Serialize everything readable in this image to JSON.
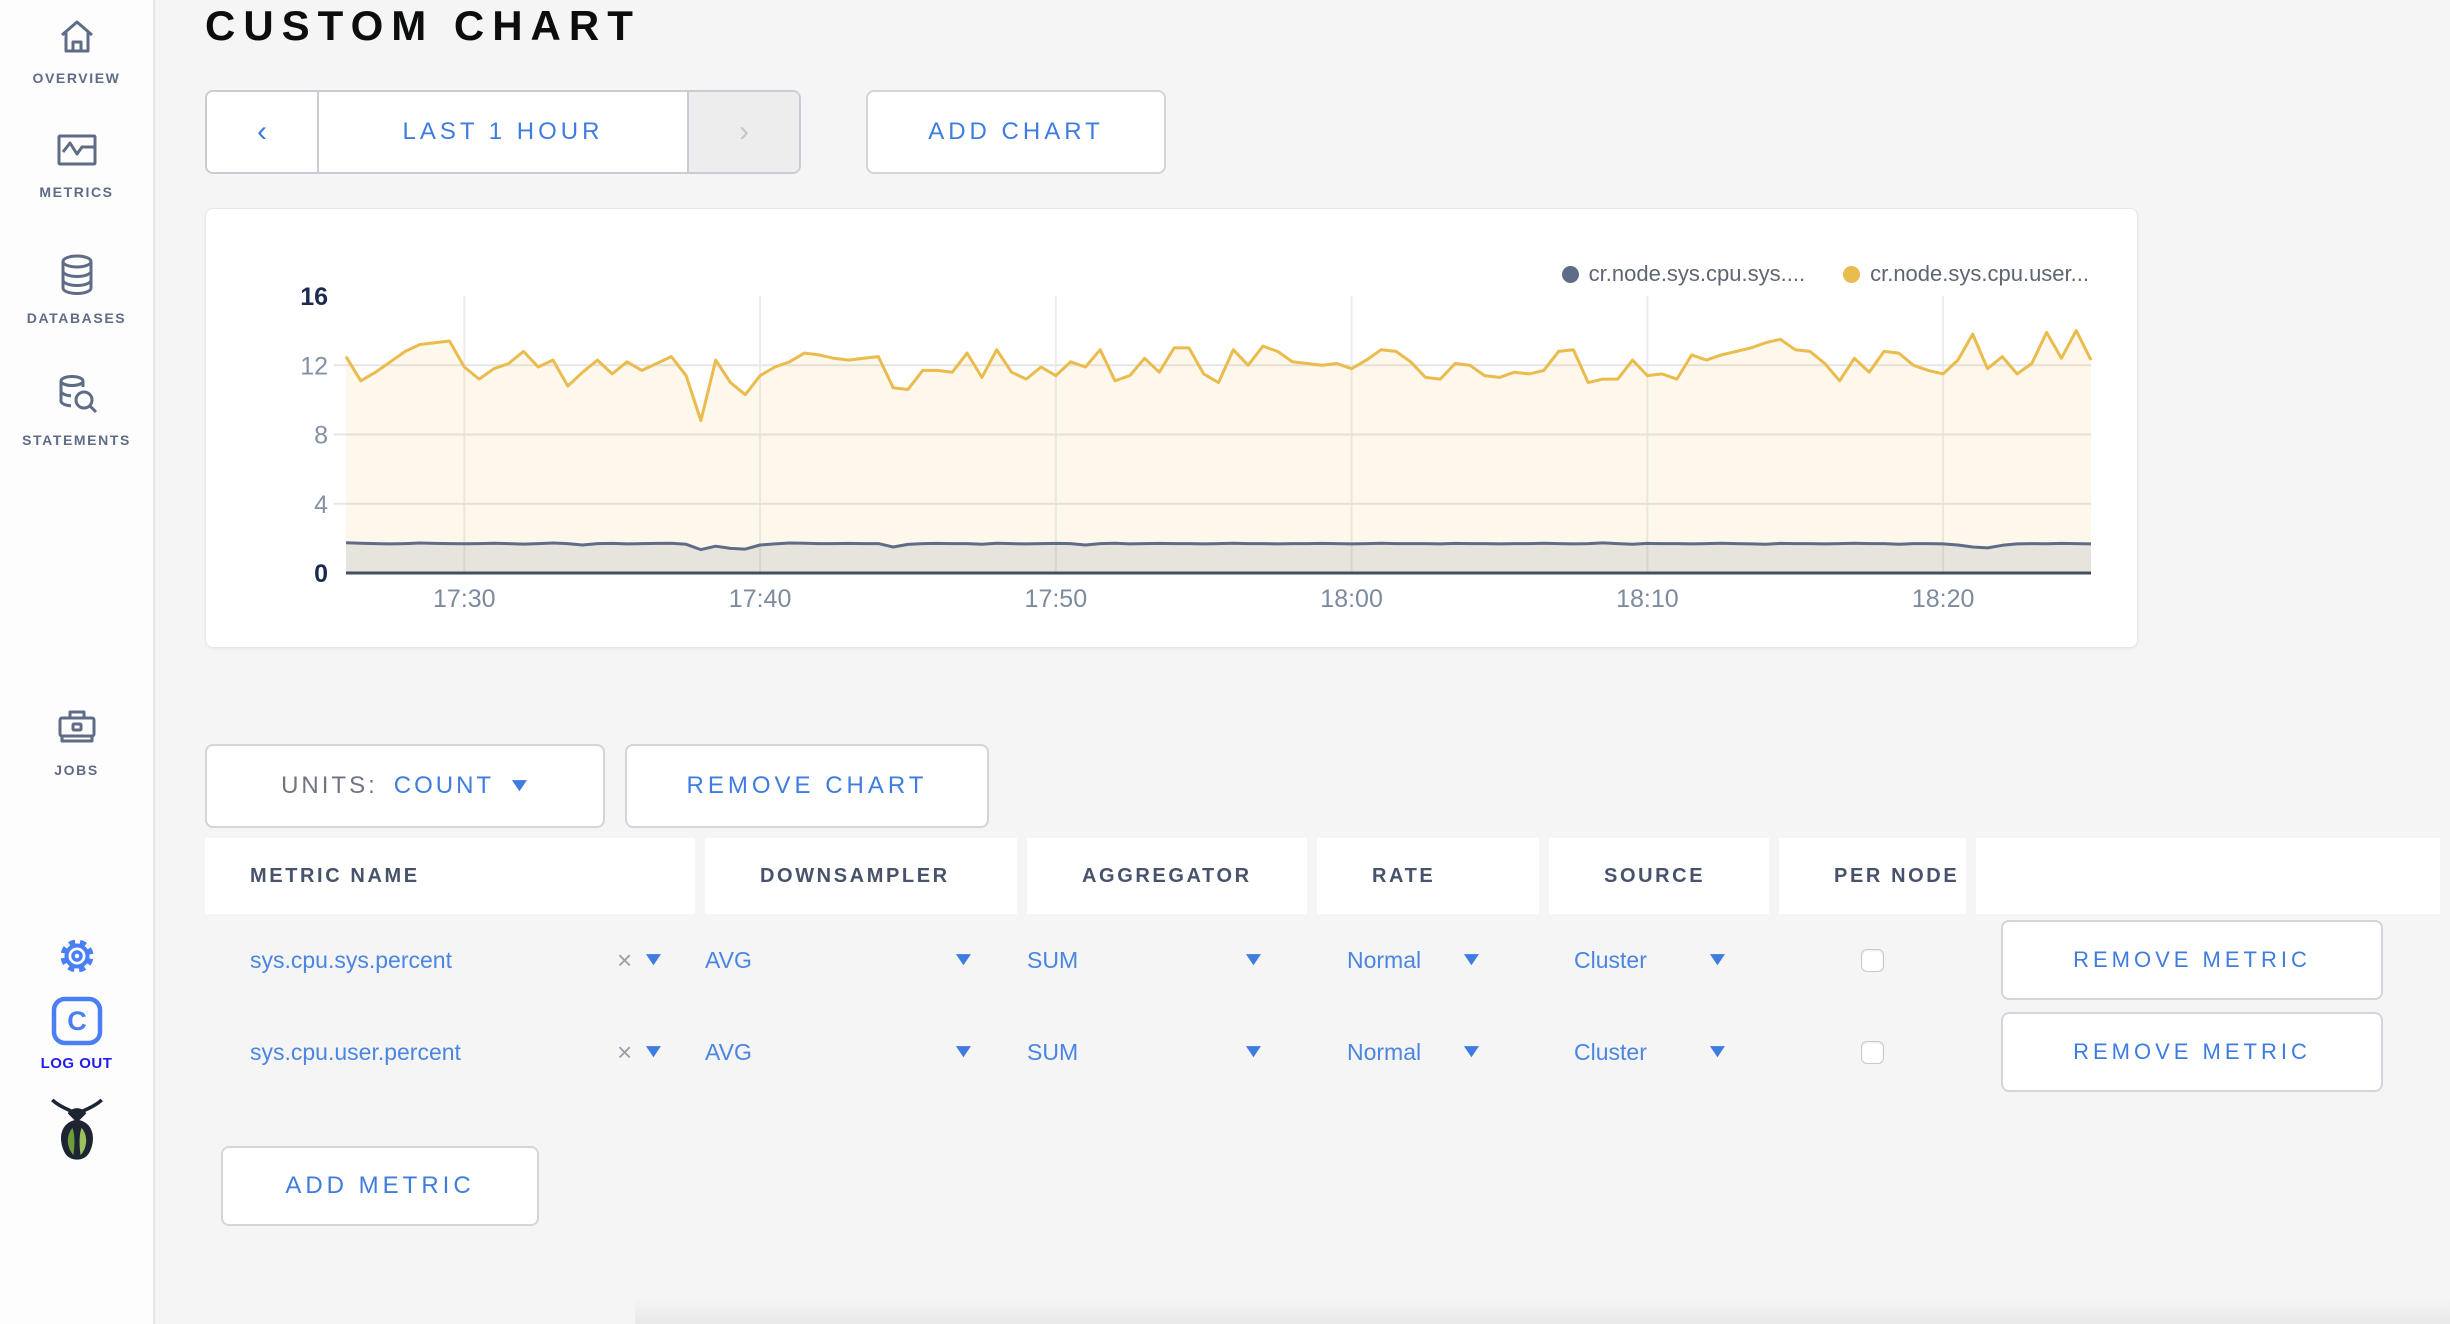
{
  "colors": {
    "accent_blue": "#3f7ce0",
    "logout_blue": "#211cf0",
    "sidebar_icon_gray": "#5f6c87",
    "settings_icon_blue": "#4a7ef5",
    "series_sys": "#5f6c87",
    "series_user": "#eabb4d"
  },
  "header": {
    "title": "CUSTOM CHART"
  },
  "sidebar": {
    "items": [
      {
        "label": "OVERVIEW"
      },
      {
        "label": "METRICS"
      },
      {
        "label": "DATABASES"
      },
      {
        "label": "STATEMENTS"
      },
      {
        "label": "JOBS"
      }
    ],
    "logout": {
      "icon_letter": "C",
      "label": "LOG OUT"
    }
  },
  "controls": {
    "prev_arrow": "‹",
    "time_range_label": "LAST 1 HOUR",
    "next_arrow": "›",
    "add_chart_label": "ADD CHART"
  },
  "units": {
    "label": "UNITS:",
    "value": "COUNT"
  },
  "remove_chart_label": "REMOVE CHART",
  "chart_data": {
    "type": "line",
    "title": "",
    "grid": true,
    "legend_position": "top-right",
    "x_axis": {
      "start_time": "17:26",
      "step_minutes": 0.5,
      "tick_minutes": [
        4,
        14,
        24,
        34,
        44,
        54
      ],
      "tick_labels": [
        "17:30",
        "17:40",
        "17:50",
        "18:00",
        "18:10",
        "18:20"
      ]
    },
    "y_axis": {
      "range": [
        0,
        16
      ],
      "ticks": [
        0,
        4,
        8,
        12,
        16
      ]
    },
    "series": [
      {
        "name": "cr.node.sys.cpu.sys....",
        "color": "#5f6c87",
        "fill": "rgba(95,108,135,0.14)",
        "values": [
          1.75,
          1.72,
          1.7,
          1.68,
          1.7,
          1.73,
          1.71,
          1.7,
          1.69,
          1.7,
          1.72,
          1.7,
          1.67,
          1.7,
          1.73,
          1.7,
          1.62,
          1.7,
          1.71,
          1.68,
          1.7,
          1.71,
          1.72,
          1.66,
          1.35,
          1.55,
          1.42,
          1.38,
          1.62,
          1.68,
          1.73,
          1.72,
          1.7,
          1.7,
          1.71,
          1.7,
          1.7,
          1.5,
          1.65,
          1.7,
          1.71,
          1.7,
          1.7,
          1.66,
          1.72,
          1.7,
          1.68,
          1.7,
          1.71,
          1.7,
          1.62,
          1.7,
          1.72,
          1.68,
          1.7,
          1.71,
          1.7,
          1.7,
          1.68,
          1.7,
          1.72,
          1.7,
          1.7,
          1.68,
          1.7,
          1.7,
          1.71,
          1.7,
          1.68,
          1.7,
          1.72,
          1.7,
          1.7,
          1.7,
          1.68,
          1.71,
          1.7,
          1.7,
          1.68,
          1.7,
          1.7,
          1.72,
          1.7,
          1.68,
          1.7,
          1.74,
          1.7,
          1.66,
          1.71,
          1.7,
          1.7,
          1.68,
          1.7,
          1.72,
          1.7,
          1.68,
          1.66,
          1.71,
          1.7,
          1.7,
          1.68,
          1.7,
          1.72,
          1.7,
          1.7,
          1.66,
          1.7,
          1.7,
          1.68,
          1.62,
          1.5,
          1.45,
          1.6,
          1.68,
          1.7,
          1.69,
          1.71,
          1.7,
          1.68
        ]
      },
      {
        "name": "cr.node.sys.cpu.user...",
        "color": "#eabb4d",
        "fill": "rgba(234,187,77,0.11)",
        "values": [
          12.5,
          11.1,
          11.6,
          12.2,
          12.8,
          13.2,
          13.3,
          13.4,
          11.9,
          11.2,
          11.8,
          12.1,
          12.8,
          11.9,
          12.3,
          10.8,
          11.6,
          12.3,
          11.5,
          12.2,
          11.7,
          12.1,
          12.5,
          11.4,
          8.8,
          12.3,
          11.0,
          10.3,
          11.4,
          11.9,
          12.2,
          12.7,
          12.6,
          12.4,
          12.3,
          12.4,
          12.5,
          10.7,
          10.6,
          11.7,
          11.7,
          11.6,
          12.7,
          11.3,
          12.9,
          11.6,
          11.2,
          11.9,
          11.4,
          12.2,
          11.9,
          12.9,
          11.1,
          11.4,
          12.4,
          11.6,
          13.0,
          13.0,
          11.5,
          11.0,
          12.9,
          12.0,
          13.1,
          12.8,
          12.2,
          12.1,
          12.0,
          12.1,
          11.8,
          12.3,
          12.9,
          12.8,
          12.2,
          11.3,
          11.2,
          12.1,
          12.0,
          11.4,
          11.3,
          11.6,
          11.5,
          11.7,
          12.8,
          12.9,
          11.0,
          11.2,
          11.2,
          12.3,
          11.4,
          11.5,
          11.2,
          12.6,
          12.3,
          12.6,
          12.8,
          13.0,
          13.3,
          13.5,
          12.9,
          12.8,
          12.1,
          11.1,
          12.4,
          11.6,
          12.8,
          12.7,
          12.0,
          11.7,
          11.5,
          12.3,
          13.8,
          11.8,
          12.5,
          11.5,
          12.1,
          13.9,
          12.4,
          14.0,
          12.3
        ]
      }
    ]
  },
  "table": {
    "headers": [
      "METRIC NAME",
      "DOWNSAMPLER",
      "AGGREGATOR",
      "RATE",
      "SOURCE",
      "PER NODE",
      ""
    ],
    "rows": [
      {
        "metric": "sys.cpu.sys.percent",
        "clear": "×",
        "downsampler": "AVG",
        "aggregator": "SUM",
        "rate": "Normal",
        "source": "Cluster",
        "per_node_checked": false,
        "remove_label": "REMOVE METRIC"
      },
      {
        "metric": "sys.cpu.user.percent",
        "clear": "×",
        "downsampler": "AVG",
        "aggregator": "SUM",
        "rate": "Normal",
        "source": "Cluster",
        "per_node_checked": false,
        "remove_label": "REMOVE METRIC"
      }
    ],
    "add_metric_label": "ADD METRIC"
  }
}
